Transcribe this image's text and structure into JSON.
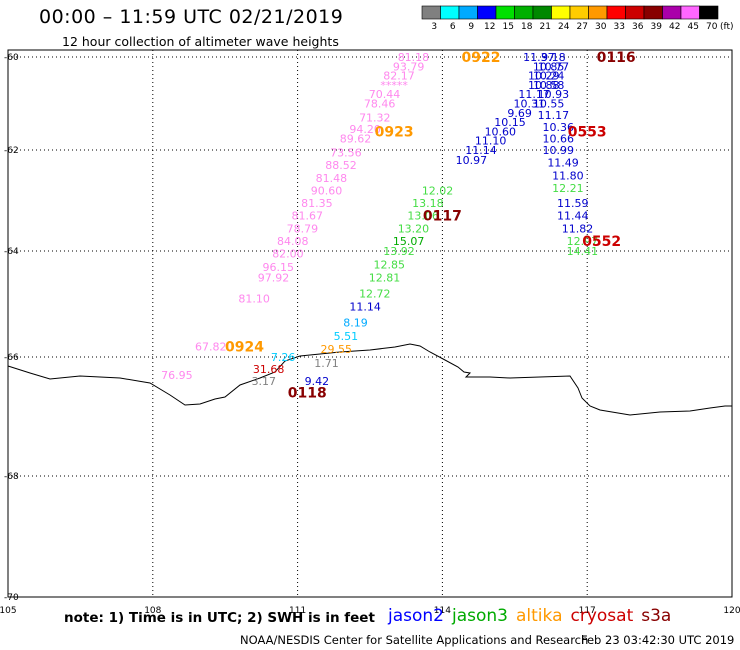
{
  "header": {
    "title": "00:00 – 11:59 UTC 02/21/2019",
    "subtitle": "12 hour collection of altimeter wave heights"
  },
  "colorbar": {
    "unit": "(ft)",
    "bins": [
      {
        "label": "3",
        "color": "#808080"
      },
      {
        "label": "6",
        "color": "#00ffff"
      },
      {
        "label": "9",
        "color": "#00aaff"
      },
      {
        "label": "12",
        "color": "#0000ff"
      },
      {
        "label": "15",
        "color": "#00e000"
      },
      {
        "label": "18",
        "color": "#00b000"
      },
      {
        "label": "21",
        "color": "#008800"
      },
      {
        "label": "24",
        "color": "#ffff00"
      },
      {
        "label": "27",
        "color": "#ffcc00"
      },
      {
        "label": "30",
        "color": "#ff9900"
      },
      {
        "label": "33",
        "color": "#ff0000"
      },
      {
        "label": "36",
        "color": "#cc0000"
      },
      {
        "label": "39",
        "color": "#880000"
      },
      {
        "label": "42",
        "color": "#aa00aa"
      },
      {
        "label": "45",
        "color": "#ff66ff"
      },
      {
        "label": "70",
        "color": "#000000"
      }
    ]
  },
  "footer": {
    "note": "note:  1) Time is in UTC;  2) SWH is in feet",
    "credit": "NOAA/NESDIS Center for Satellite Applications and Research",
    "timestamp": "Feb 23 03:42:30 UTC 2019"
  },
  "legend": [
    {
      "name": "jason2",
      "color": "#0000ff"
    },
    {
      "name": "jason3",
      "color": "#00aa00"
    },
    {
      "name": "altika",
      "color": "#ff9900"
    },
    {
      "name": "cryosat",
      "color": "#cc0000"
    },
    {
      "name": "s3a",
      "color": "#880000"
    }
  ],
  "chart_data": {
    "type": "scatter",
    "title": "00:00 – 11:59 UTC 02/21/2019",
    "subtitle": "12 hour collection of altimeter wave heights",
    "xlim": [
      105,
      120
    ],
    "ylim": [
      -70,
      -60
    ],
    "x_ticks": [
      "105",
      "108",
      "111",
      "114",
      "117",
      "120"
    ],
    "y_ticks": [
      "-60",
      "-62",
      "-64",
      "-66",
      "-68",
      "-70"
    ],
    "grid": true,
    "units": "ft",
    "time_labels": [
      {
        "text": "0922",
        "color": "#ff9900",
        "lon": 114.8,
        "lat": -60.0
      },
      {
        "text": "0116",
        "color": "#880000",
        "lon": 117.6,
        "lat": -60.0
      },
      {
        "text": "0923",
        "color": "#ff9900",
        "lon": 113.0,
        "lat": -61.6
      },
      {
        "text": "0553",
        "color": "#cc0000",
        "lon": 117.0,
        "lat": -61.6
      },
      {
        "text": "0117",
        "color": "#880000",
        "lon": 114.0,
        "lat": -63.3
      },
      {
        "text": "0552",
        "color": "#cc0000",
        "lon": 117.3,
        "lat": -63.8
      },
      {
        "text": "0924",
        "color": "#ff9900",
        "lon": 109.9,
        "lat": -65.8
      },
      {
        "text": "0118",
        "color": "#880000",
        "lon": 111.2,
        "lat": -66.6
      }
    ],
    "series": [
      {
        "name": "altika",
        "values": [
          {
            "lon": 113.4,
            "lat": -60.0,
            "swh": "81.18",
            "color": "#ff88ee"
          },
          {
            "lon": 113.3,
            "lat": -60.2,
            "swh": "93.79",
            "color": "#ff88ee"
          },
          {
            "lon": 113.1,
            "lat": -60.4,
            "swh": "82.17",
            "color": "#ff88ee"
          },
          {
            "lon": 113.0,
            "lat": -60.6,
            "swh": "*****",
            "color": "#ff88ee"
          },
          {
            "lon": 112.8,
            "lat": -60.8,
            "swh": "70.44",
            "color": "#ff88ee"
          },
          {
            "lon": 112.7,
            "lat": -61.0,
            "swh": "78.46",
            "color": "#ff88ee"
          },
          {
            "lon": 112.6,
            "lat": -61.3,
            "swh": "71.32",
            "color": "#ff88ee"
          },
          {
            "lon": 112.4,
            "lat": -61.55,
            "swh": "94.20",
            "color": "#ff88ee"
          },
          {
            "lon": 112.2,
            "lat": -61.75,
            "swh": "89.62",
            "color": "#ff88ee"
          },
          {
            "lon": 112.0,
            "lat": -62.05,
            "swh": "73.56",
            "color": "#ff88ee"
          },
          {
            "lon": 111.9,
            "lat": -62.3,
            "swh": "88.52",
            "color": "#ff88ee"
          },
          {
            "lon": 111.7,
            "lat": -62.55,
            "swh": "81.48",
            "color": "#ff88ee"
          },
          {
            "lon": 111.6,
            "lat": -62.8,
            "swh": "90.60",
            "color": "#ff88ee"
          },
          {
            "lon": 111.4,
            "lat": -63.05,
            "swh": "81.35",
            "color": "#ff88ee"
          },
          {
            "lon": 111.2,
            "lat": -63.3,
            "swh": "81.67",
            "color": "#ff88ee"
          },
          {
            "lon": 111.1,
            "lat": -63.55,
            "swh": "78.79",
            "color": "#ff88ee"
          },
          {
            "lon": 110.9,
            "lat": -63.8,
            "swh": "84.08",
            "color": "#ff88ee"
          },
          {
            "lon": 110.8,
            "lat": -64.05,
            "swh": "82.00",
            "color": "#ff88ee"
          },
          {
            "lon": 110.6,
            "lat": -64.3,
            "swh": "96.15",
            "color": "#ff88ee"
          },
          {
            "lon": 110.5,
            "lat": -64.5,
            "swh": "97.92",
            "color": "#ff88ee"
          },
          {
            "lon": 110.1,
            "lat": -64.9,
            "swh": "81.10",
            "color": "#ff88ee"
          },
          {
            "lon": 109.2,
            "lat": -65.8,
            "swh": "67.82",
            "color": "#ff88ee"
          },
          {
            "lon": 108.5,
            "lat": -66.3,
            "swh": "76.95",
            "color": "#ff88ee"
          }
        ]
      },
      {
        "name": "jason3",
        "values": [
          {
            "lon": 113.9,
            "lat": -62.8,
            "swh": "12.02",
            "color": "#44dd44"
          },
          {
            "lon": 113.7,
            "lat": -63.05,
            "swh": "13.18",
            "color": "#44dd44"
          },
          {
            "lon": 113.6,
            "lat": -63.3,
            "swh": "13.06",
            "color": "#44dd44"
          },
          {
            "lon": 113.4,
            "lat": -63.55,
            "swh": "13.20",
            "color": "#44dd44"
          },
          {
            "lon": 113.3,
            "lat": -63.8,
            "swh": "15.07",
            "color": "#00aa00"
          },
          {
            "lon": 113.1,
            "lat": -64.0,
            "swh": "13.92",
            "color": "#44dd44"
          },
          {
            "lon": 112.9,
            "lat": -64.25,
            "swh": "12.85",
            "color": "#44dd44"
          },
          {
            "lon": 112.8,
            "lat": -64.5,
            "swh": "12.81",
            "color": "#44dd44"
          },
          {
            "lon": 112.6,
            "lat": -64.8,
            "swh": "12.72",
            "color": "#44dd44"
          },
          {
            "lon": 112.4,
            "lat": -65.05,
            "swh": "11.14",
            "color": "#0000cc"
          },
          {
            "lon": 112.2,
            "lat": -65.35,
            "swh": "8.19",
            "color": "#00aaff"
          },
          {
            "lon": 112.0,
            "lat": -65.6,
            "swh": "5.51",
            "color": "#00ccff"
          },
          {
            "lon": 111.8,
            "lat": -65.85,
            "swh": "29.55",
            "color": "#ff9900"
          },
          {
            "lon": 111.6,
            "lat": -66.1,
            "swh": "1.71",
            "color": "#808080"
          },
          {
            "lon": 111.4,
            "lat": -66.4,
            "swh": "9.42",
            "color": "#0000cc"
          }
        ]
      },
      {
        "name": "jason2",
        "values": [
          {
            "lon": 116.0,
            "lat": -60.0,
            "swh": "11.37",
            "color": "#0000cc"
          },
          {
            "lon": 116.2,
            "lat": -60.2,
            "swh": "10.85",
            "color": "#0000cc"
          },
          {
            "lon": 116.1,
            "lat": -60.4,
            "swh": "10.29",
            "color": "#0000cc"
          },
          {
            "lon": 116.1,
            "lat": -60.6,
            "swh": "10.88",
            "color": "#0000cc"
          },
          {
            "lon": 115.9,
            "lat": -60.8,
            "swh": "11.17",
            "color": "#0000cc"
          },
          {
            "lon": 115.8,
            "lat": -61.0,
            "swh": "10.31",
            "color": "#0000cc"
          },
          {
            "lon": 115.6,
            "lat": -61.2,
            "swh": "9.69",
            "color": "#0000cc"
          },
          {
            "lon": 115.4,
            "lat": -61.4,
            "swh": "10.15",
            "color": "#0000cc"
          },
          {
            "lon": 115.2,
            "lat": -61.6,
            "swh": "10.60",
            "color": "#0000cc"
          },
          {
            "lon": 115.0,
            "lat": -61.8,
            "swh": "11.10",
            "color": "#0000cc"
          },
          {
            "lon": 114.8,
            "lat": -62.0,
            "swh": "11.14",
            "color": "#0000cc"
          },
          {
            "lon": 114.6,
            "lat": -62.2,
            "swh": "10.97",
            "color": "#0000cc"
          },
          {
            "lon": 116.3,
            "lat": -60.0,
            "swh": "9.18",
            "color": "#0000cc"
          },
          {
            "lon": 116.3,
            "lat": -60.2,
            "swh": "10.77",
            "color": "#0000cc"
          },
          {
            "lon": 116.2,
            "lat": -60.4,
            "swh": "10.24",
            "color": "#0000cc"
          },
          {
            "lon": 116.2,
            "lat": -60.6,
            "swh": "10.58",
            "color": "#0000cc"
          },
          {
            "lon": 116.3,
            "lat": -60.8,
            "swh": "10.93",
            "color": "#0000cc"
          },
          {
            "lon": 116.2,
            "lat": -61.0,
            "swh": "10.55",
            "color": "#0000cc"
          },
          {
            "lon": 116.3,
            "lat": -61.25,
            "swh": "11.17",
            "color": "#0000cc"
          },
          {
            "lon": 116.4,
            "lat": -61.5,
            "swh": "10.36",
            "color": "#0000cc"
          },
          {
            "lon": 116.4,
            "lat": -61.75,
            "swh": "10.66",
            "color": "#0000cc"
          },
          {
            "lon": 116.4,
            "lat": -62.0,
            "swh": "10.99",
            "color": "#0000cc"
          },
          {
            "lon": 116.5,
            "lat": -62.25,
            "swh": "11.49",
            "color": "#0000cc"
          },
          {
            "lon": 116.6,
            "lat": -62.5,
            "swh": "11.80",
            "color": "#0000cc"
          },
          {
            "lon": 116.6,
            "lat": -62.75,
            "swh": "12.21",
            "color": "#44dd44"
          },
          {
            "lon": 116.7,
            "lat": -63.05,
            "swh": "11.59",
            "color": "#0000cc"
          },
          {
            "lon": 116.7,
            "lat": -63.3,
            "swh": "11.44",
            "color": "#0000cc"
          },
          {
            "lon": 116.8,
            "lat": -63.55,
            "swh": "11.82",
            "color": "#0000cc"
          },
          {
            "lon": 116.9,
            "lat": -63.8,
            "swh": "12.97",
            "color": "#44dd44"
          },
          {
            "lon": 116.9,
            "lat": -64.0,
            "swh": "14.41",
            "color": "#44dd44"
          }
        ]
      },
      {
        "name": "cryosat",
        "values": [
          {
            "lon": 110.7,
            "lat": -66.0,
            "swh": "7.26",
            "color": "#00ccff"
          },
          {
            "lon": 110.4,
            "lat": -66.2,
            "swh": "31.68",
            "color": "#cc0000"
          },
          {
            "lon": 110.3,
            "lat": -66.4,
            "swh": "3.17",
            "color": "#808080"
          }
        ]
      }
    ]
  }
}
